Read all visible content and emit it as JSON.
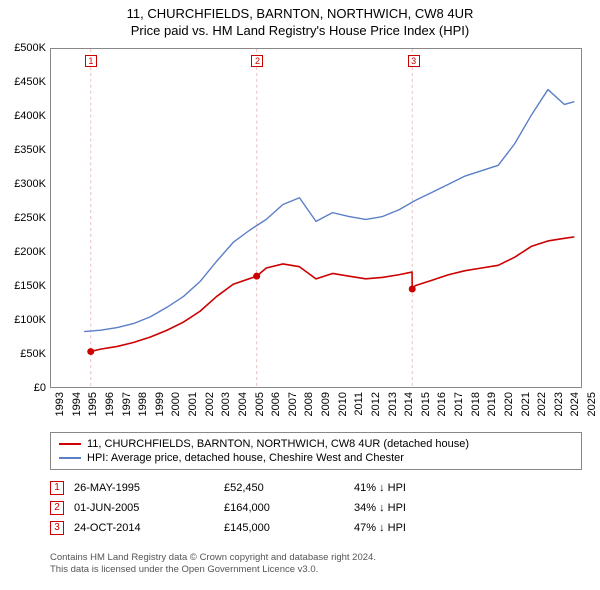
{
  "title_line1": "11, CHURCHFIELDS, BARNTON, NORTHWICH, CW8 4UR",
  "title_line2": "Price paid vs. HM Land Registry's House Price Index (HPI)",
  "chart": {
    "type": "line",
    "background_color": "#ffffff",
    "border_color": "#888888",
    "x_axis": {
      "min_year": 1993,
      "max_year": 2025,
      "tick_years": [
        1993,
        1994,
        1995,
        1996,
        1997,
        1998,
        1999,
        2000,
        2001,
        2002,
        2003,
        2004,
        2005,
        2006,
        2007,
        2008,
        2009,
        2010,
        2011,
        2012,
        2013,
        2014,
        2015,
        2016,
        2017,
        2018,
        2019,
        2020,
        2021,
        2022,
        2023,
        2024,
        2025
      ],
      "label_fontsize": 11,
      "rotation": -90
    },
    "y_axis": {
      "min": 0,
      "max": 500000,
      "tick_step": 50000,
      "tick_labels": [
        "£0",
        "£50K",
        "£100K",
        "£150K",
        "£200K",
        "£250K",
        "£300K",
        "£350K",
        "£400K",
        "£450K",
        "£500K"
      ],
      "label_fontsize": 11
    },
    "series": [
      {
        "name": "property_price",
        "label": "11, CHURCHFIELDS, BARNTON, NORTHWICH, CW8 4UR (detached house)",
        "color": "#cc0000",
        "line_width": 1.6,
        "points_year_value": [
          [
            1995.4,
            52450
          ],
          [
            1996,
            56000
          ],
          [
            1997,
            60000
          ],
          [
            1998,
            66000
          ],
          [
            1999,
            74000
          ],
          [
            2000,
            84000
          ],
          [
            2001,
            96000
          ],
          [
            2002,
            112000
          ],
          [
            2003,
            134000
          ],
          [
            2004,
            152000
          ],
          [
            2005.42,
            164000
          ],
          [
            2006,
            176000
          ],
          [
            2007,
            182000
          ],
          [
            2008,
            178000
          ],
          [
            2009,
            160000
          ],
          [
            2010,
            168000
          ],
          [
            2011,
            164000
          ],
          [
            2012,
            160000
          ],
          [
            2013,
            162000
          ],
          [
            2014,
            166000
          ],
          [
            2014.8,
            170000
          ],
          [
            2014.81,
            145000
          ],
          [
            2015,
            150000
          ],
          [
            2016,
            158000
          ],
          [
            2017,
            166000
          ],
          [
            2018,
            172000
          ],
          [
            2019,
            176000
          ],
          [
            2020,
            180000
          ],
          [
            2021,
            192000
          ],
          [
            2022,
            208000
          ],
          [
            2023,
            216000
          ],
          [
            2024,
            220000
          ],
          [
            2024.6,
            222000
          ]
        ]
      },
      {
        "name": "hpi",
        "label": "HPI: Average price, detached house, Cheshire West and Chester",
        "color": "#5b7fc7",
        "line_width": 1.4,
        "points_year_value": [
          [
            1995,
            82000
          ],
          [
            1996,
            84000
          ],
          [
            1997,
            88000
          ],
          [
            1998,
            94000
          ],
          [
            1999,
            104000
          ],
          [
            2000,
            118000
          ],
          [
            2001,
            134000
          ],
          [
            2002,
            156000
          ],
          [
            2003,
            186000
          ],
          [
            2004,
            214000
          ],
          [
            2005,
            232000
          ],
          [
            2006,
            248000
          ],
          [
            2007,
            270000
          ],
          [
            2008,
            280000
          ],
          [
            2009,
            245000
          ],
          [
            2010,
            258000
          ],
          [
            2011,
            252000
          ],
          [
            2012,
            248000
          ],
          [
            2013,
            252000
          ],
          [
            2014,
            262000
          ],
          [
            2015,
            276000
          ],
          [
            2016,
            288000
          ],
          [
            2017,
            300000
          ],
          [
            2018,
            312000
          ],
          [
            2019,
            320000
          ],
          [
            2020,
            328000
          ],
          [
            2021,
            360000
          ],
          [
            2022,
            402000
          ],
          [
            2023,
            440000
          ],
          [
            2024,
            418000
          ],
          [
            2024.6,
            422000
          ]
        ]
      }
    ],
    "sale_markers": [
      {
        "index": "1",
        "year": 1995.4,
        "color": "#cc0000"
      },
      {
        "index": "2",
        "year": 2005.42,
        "color": "#cc0000"
      },
      {
        "index": "3",
        "year": 2014.81,
        "color": "#cc0000"
      }
    ],
    "sale_marker_gridline_color": "#e6c0c0"
  },
  "legend": {
    "border_color": "#888888",
    "fontsize": 11
  },
  "sales_table": {
    "marker_border_color": "#cc0000",
    "marker_text_color": "#cc0000",
    "rows": [
      {
        "index": "1",
        "date": "26-MAY-1995",
        "price": "£52,450",
        "pct": "41% ↓ HPI"
      },
      {
        "index": "2",
        "date": "01-JUN-2005",
        "price": "£164,000",
        "pct": "34% ↓ HPI"
      },
      {
        "index": "3",
        "date": "24-OCT-2014",
        "price": "£145,000",
        "pct": "47% ↓ HPI"
      }
    ]
  },
  "footer": {
    "line1": "Contains HM Land Registry data © Crown copyright and database right 2024.",
    "line2": "This data is licensed under the Open Government Licence v3.0.",
    "color": "#555555",
    "fontsize": 9.5
  }
}
